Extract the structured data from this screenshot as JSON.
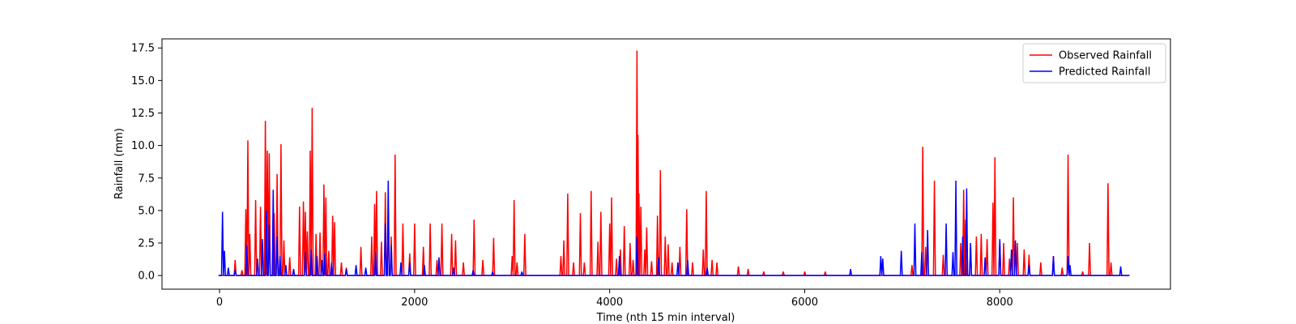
{
  "chart_data": {
    "type": "line",
    "title": "",
    "xlabel": "Time (nth 15 min interval)",
    "ylabel": "Rainfall (mm)",
    "xlim": [
      -590,
      9750
    ],
    "ylim": [
      -1.05,
      18.2
    ],
    "x_ticks": [
      0,
      2000,
      4000,
      6000,
      8000
    ],
    "x_tick_labels": [
      "0",
      "2000",
      "4000",
      "6000",
      "8000"
    ],
    "y_ticks": [
      0.0,
      2.5,
      5.0,
      7.5,
      10.0,
      12.5,
      15.0,
      17.5
    ],
    "y_tick_labels": [
      "0.0",
      "2.5",
      "5.0",
      "7.5",
      "10.0",
      "12.5",
      "15.0",
      "17.5"
    ],
    "grid": false,
    "legend_position": "top-right",
    "series": [
      {
        "name": "Observed Rainfall",
        "color": "#ff0000",
        "points": [
          [
            0,
            0
          ],
          [
            160,
            1.2
          ],
          [
            230,
            0.4
          ],
          [
            270,
            5.1
          ],
          [
            290,
            10.4
          ],
          [
            310,
            3.2
          ],
          [
            370,
            5.8
          ],
          [
            420,
            5.3
          ],
          [
            470,
            11.9
          ],
          [
            490,
            9.6
          ],
          [
            510,
            9.4
          ],
          [
            560,
            4.8
          ],
          [
            590,
            7.8
          ],
          [
            630,
            10.1
          ],
          [
            660,
            2.7
          ],
          [
            720,
            1.4
          ],
          [
            820,
            5.3
          ],
          [
            860,
            5.7
          ],
          [
            880,
            4.9
          ],
          [
            900,
            3.4
          ],
          [
            930,
            9.6
          ],
          [
            950,
            12.9
          ],
          [
            990,
            3.2
          ],
          [
            1030,
            3.3
          ],
          [
            1070,
            7.0
          ],
          [
            1090,
            6.0
          ],
          [
            1120,
            1.9
          ],
          [
            1160,
            4.6
          ],
          [
            1180,
            4.1
          ],
          [
            1250,
            1.0
          ],
          [
            1300,
            0.6
          ],
          [
            1450,
            2.2
          ],
          [
            1560,
            3.0
          ],
          [
            1590,
            5.5
          ],
          [
            1610,
            6.5
          ],
          [
            1660,
            2.6
          ],
          [
            1700,
            6.4
          ],
          [
            1730,
            4.9
          ],
          [
            1760,
            3.0
          ],
          [
            1800,
            9.3
          ],
          [
            1880,
            4.0
          ],
          [
            1950,
            1.7
          ],
          [
            2000,
            4.0
          ],
          [
            2090,
            2.2
          ],
          [
            2160,
            4.0
          ],
          [
            2230,
            1.2
          ],
          [
            2280,
            4.0
          ],
          [
            2380,
            3.2
          ],
          [
            2420,
            2.7
          ],
          [
            2500,
            1.0
          ],
          [
            2610,
            4.3
          ],
          [
            2700,
            1.2
          ],
          [
            2810,
            2.9
          ],
          [
            3000,
            1.5
          ],
          [
            3020,
            5.8
          ],
          [
            3050,
            1.0
          ],
          [
            3130,
            3.2
          ],
          [
            3500,
            1.5
          ],
          [
            3530,
            2.7
          ],
          [
            3570,
            6.3
          ],
          [
            3630,
            1.0
          ],
          [
            3700,
            4.8
          ],
          [
            3740,
            1.0
          ],
          [
            3810,
            6.5
          ],
          [
            3880,
            2.6
          ],
          [
            3910,
            4.9
          ],
          [
            4000,
            4.0
          ],
          [
            4020,
            6.0
          ],
          [
            4070,
            1.3
          ],
          [
            4110,
            2.0
          ],
          [
            4150,
            3.8
          ],
          [
            4210,
            2.5
          ],
          [
            4240,
            1.2
          ],
          [
            4280,
            17.3
          ],
          [
            4290,
            10.8
          ],
          [
            4300,
            6.3
          ],
          [
            4320,
            5.3
          ],
          [
            4360,
            2.0
          ],
          [
            4380,
            3.7
          ],
          [
            4430,
            1.1
          ],
          [
            4490,
            4.6
          ],
          [
            4520,
            8.1
          ],
          [
            4570,
            3.0
          ],
          [
            4600,
            2.4
          ],
          [
            4640,
            1.0
          ],
          [
            4720,
            2.2
          ],
          [
            4790,
            5.1
          ],
          [
            4850,
            1.0
          ],
          [
            4960,
            2.0
          ],
          [
            4990,
            6.5
          ],
          [
            5050,
            1.2
          ],
          [
            5100,
            1.0
          ],
          [
            5320,
            0.7
          ],
          [
            5420,
            0.5
          ],
          [
            5580,
            0.3
          ],
          [
            5780,
            0.3
          ],
          [
            6000,
            0.3
          ],
          [
            6210,
            0.3
          ],
          [
            7100,
            0.8
          ],
          [
            7210,
            9.9
          ],
          [
            7240,
            2.2
          ],
          [
            7330,
            7.3
          ],
          [
            7420,
            1.6
          ],
          [
            7600,
            2.5
          ],
          [
            7630,
            6.6
          ],
          [
            7650,
            4.3
          ],
          [
            7700,
            2.2
          ],
          [
            7760,
            3.0
          ],
          [
            7810,
            3.2
          ],
          [
            7870,
            2.8
          ],
          [
            7930,
            5.6
          ],
          [
            7950,
            9.1
          ],
          [
            8000,
            2.7
          ],
          [
            8040,
            2.5
          ],
          [
            8100,
            1.3
          ],
          [
            8140,
            6.0
          ],
          [
            8180,
            2.5
          ],
          [
            8250,
            2.0
          ],
          [
            8300,
            1.6
          ],
          [
            8420,
            1.0
          ],
          [
            8550,
            1.5
          ],
          [
            8640,
            0.6
          ],
          [
            8700,
            9.3
          ],
          [
            8850,
            0.3
          ],
          [
            8920,
            2.5
          ],
          [
            9110,
            7.1
          ],
          [
            9140,
            1.0
          ]
        ]
      },
      {
        "name": "Predicted Rainfall",
        "color": "#0000ff",
        "points": [
          [
            0,
            0
          ],
          [
            30,
            4.9
          ],
          [
            50,
            1.9
          ],
          [
            90,
            0.6
          ],
          [
            160,
            0.4
          ],
          [
            280,
            2.3
          ],
          [
            390,
            1.3
          ],
          [
            440,
            2.8
          ],
          [
            480,
            5.0
          ],
          [
            510,
            3.9
          ],
          [
            550,
            6.6
          ],
          [
            590,
            3.0
          ],
          [
            620,
            1.5
          ],
          [
            680,
            0.8
          ],
          [
            760,
            0.5
          ],
          [
            880,
            1.8
          ],
          [
            940,
            2.0
          ],
          [
            1000,
            1.5
          ],
          [
            1050,
            1.2
          ],
          [
            1080,
            1.7
          ],
          [
            1150,
            1.0
          ],
          [
            1300,
            0.5
          ],
          [
            1400,
            0.8
          ],
          [
            1500,
            0.6
          ],
          [
            1600,
            1.8
          ],
          [
            1700,
            4.0
          ],
          [
            1730,
            7.3
          ],
          [
            1760,
            2.3
          ],
          [
            1860,
            1.0
          ],
          [
            1950,
            1.0
          ],
          [
            2100,
            0.8
          ],
          [
            2250,
            1.4
          ],
          [
            2400,
            0.6
          ],
          [
            2600,
            0.4
          ],
          [
            2800,
            0.3
          ],
          [
            3100,
            0.3
          ],
          [
            4100,
            1.5
          ],
          [
            4280,
            3.0
          ],
          [
            4500,
            1.4
          ],
          [
            4700,
            1.0
          ],
          [
            4800,
            1.2
          ],
          [
            5000,
            0.6
          ],
          [
            6470,
            0.5
          ],
          [
            6780,
            1.5
          ],
          [
            6800,
            1.3
          ],
          [
            6990,
            1.9
          ],
          [
            7130,
            4.0
          ],
          [
            7200,
            1.8
          ],
          [
            7260,
            3.5
          ],
          [
            7450,
            4.0
          ],
          [
            7520,
            1.8
          ],
          [
            7550,
            7.3
          ],
          [
            7620,
            3.0
          ],
          [
            7660,
            6.7
          ],
          [
            7700,
            2.5
          ],
          [
            7850,
            1.4
          ],
          [
            8000,
            2.8
          ],
          [
            8120,
            2.0
          ],
          [
            8160,
            2.7
          ],
          [
            8300,
            0.8
          ],
          [
            8550,
            1.5
          ],
          [
            8700,
            1.5
          ],
          [
            8720,
            0.8
          ],
          [
            9240,
            0.7
          ]
        ]
      }
    ]
  }
}
